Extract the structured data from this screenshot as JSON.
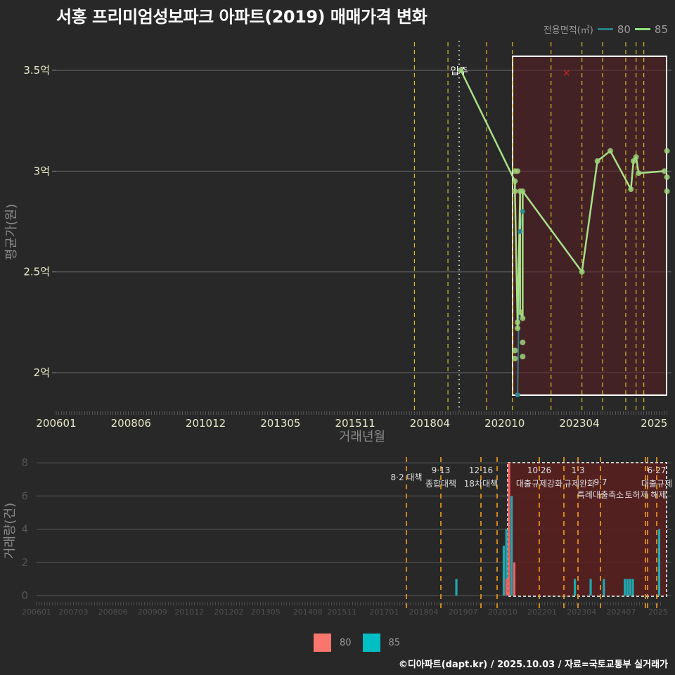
{
  "title": "서홍 프리미엄성보파크 아파트(2019) 매매가격 변화",
  "legend_top": {
    "title": "전용면적(㎡)",
    "items": [
      {
        "label": "80",
        "color": "#2a7f8a"
      },
      {
        "label": "85",
        "color": "#8fe07a"
      }
    ]
  },
  "legend_bottom": {
    "items": [
      {
        "label": "80",
        "color": "#f8766d"
      },
      {
        "label": "85",
        "color": "#00bfc4"
      }
    ]
  },
  "footer": "©디아파트(dapt.kr) / 2025.10.03 / 자료=국토교통부 실거래가",
  "chart_data": [
    {
      "type": "line",
      "title": "서홍 프리미엄성보파크 아파트(2019) 매매가격 변화",
      "xlabel": "거래년월",
      "ylabel": "평균가(원)",
      "x_ticks": [
        "200601",
        "200806",
        "201012",
        "201305",
        "201511",
        "201804",
        "202010",
        "202304",
        "2025"
      ],
      "y_ticks": [
        "2억",
        "2.5억",
        "3억",
        "3.5억"
      ],
      "ylim": [
        1.8,
        3.6
      ],
      "annotation": {
        "label": "입주",
        "x": "201812"
      },
      "policy_lines": [
        "201708",
        "201809",
        "201912",
        "202010",
        "202201",
        "202301",
        "202309",
        "202406",
        "202410",
        "202501"
      ],
      "highlight_box": {
        "from": "202010",
        "to": "202510"
      },
      "marker_x": {
        "x": "202207",
        "y": 3.49
      },
      "series": [
        {
          "name": "85",
          "points": [
            [
              "201902",
              3.5
            ],
            [
              "202011",
              2.95
            ],
            [
              "202011",
              2.9
            ],
            [
              "202012",
              2.25
            ],
            [
              "202012",
              2.22
            ],
            [
              "202101",
              2.9
            ],
            [
              "202101",
              2.3
            ],
            [
              "202102",
              2.27
            ],
            [
              "202102",
              2.9
            ],
            [
              "202301",
              2.5
            ],
            [
              "202307",
              3.05
            ],
            [
              "202312",
              3.1
            ],
            [
              "202408",
              2.91
            ],
            [
              "202409",
              3.05
            ],
            [
              "202410",
              3.07
            ],
            [
              "202411",
              2.99
            ],
            [
              "202509",
              3.0
            ]
          ],
          "extra_points": [
            [
              "202011",
              3.0
            ],
            [
              "202012",
              3.0
            ],
            [
              "202011",
              2.11
            ],
            [
              "202011",
              2.07
            ],
            [
              "202102",
              2.15
            ],
            [
              "202102",
              2.08
            ],
            [
              "202510",
              3.1
            ],
            [
              "202510",
              2.97
            ],
            [
              "202510",
              2.9
            ]
          ]
        },
        {
          "name": "80",
          "points": [
            [
              "202012",
              1.89
            ],
            [
              "202101",
              2.7
            ],
            [
              "202102",
              2.8
            ]
          ]
        }
      ]
    },
    {
      "type": "bar",
      "xlabel": "",
      "ylabel": "거래량(건)",
      "y_ticks": [
        "0",
        "2",
        "4",
        "6",
        "8"
      ],
      "ylim": [
        0,
        8
      ],
      "x_ticks": [
        "200601",
        "200703",
        "200806",
        "200909",
        "201012",
        "201202",
        "201305",
        "201408",
        "201511",
        "201701",
        "201804",
        "201907",
        "202010",
        "202201",
        "202304",
        "202407",
        "2025"
      ],
      "annotations": [
        {
          "date": "8·2",
          "text": "대책"
        },
        {
          "date": "9·13",
          "text": "종합대책"
        },
        {
          "date": "12·16",
          "text": "18차대책"
        },
        {
          "date": "10·26",
          "text": "대출규제강화"
        },
        {
          "date": "1·3",
          "text": "규제완화"
        },
        {
          "date": "9·7",
          "text": "특례대출축소"
        },
        {
          "date": "",
          "text": "토허제 해제"
        },
        {
          "date": "6·27",
          "text": "대출규제"
        }
      ],
      "series": [
        {
          "name": "80",
          "values": [
            [
              "202011",
              1
            ],
            [
              "202012",
              8
            ],
            [
              "202102",
              2
            ]
          ]
        },
        {
          "name": "85",
          "values": [
            [
              "201904",
              1
            ],
            [
              "202010",
              3
            ],
            [
              "202011",
              4
            ],
            [
              "202012",
              6
            ],
            [
              "202101",
              6
            ],
            [
              "202102",
              1
            ],
            [
              "202301",
              1
            ],
            [
              "202307",
              1
            ],
            [
              "202312",
              1
            ],
            [
              "202408",
              1
            ],
            [
              "202409",
              1
            ],
            [
              "202410",
              1
            ],
            [
              "202411",
              1
            ],
            [
              "202509",
              4
            ]
          ]
        }
      ]
    }
  ]
}
